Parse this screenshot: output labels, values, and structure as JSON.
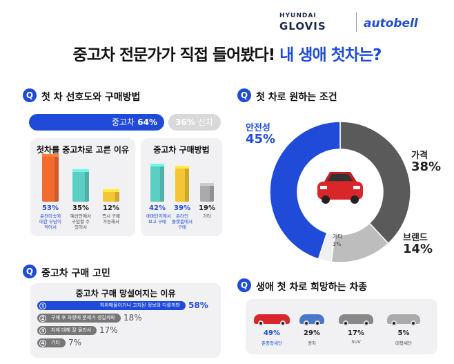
{
  "header": {
    "brand_top": "HYUNDAI",
    "brand_main": "GLOVIS",
    "brand_partner": "autobell",
    "title_main": "중고차 전문가가 직접 들어봤다! ",
    "title_highlight": "내 생애 첫차는?"
  },
  "colors": {
    "accent": "#1f4bd8",
    "dark_gray": "#555555",
    "light_gray": "#bdbdbd",
    "orange": "#f26a2e",
    "teal": "#5ccfc4",
    "yellow": "#f4c534"
  },
  "sections": {
    "q_icon": "Q",
    "s1": "첫 차 선호도와 구매방법",
    "s2": "첫 차로 원하는 조건",
    "s3": "중고차 구매 고민",
    "s4": "생애 첫 차로 희망하는 차종"
  },
  "preference": {
    "used_label": "중고차",
    "used_pct": "64%",
    "new_label": "신차",
    "new_pct": "36%",
    "used_value": 64
  },
  "chart_data": [
    {
      "type": "bar",
      "title": "첫차를 중고차로 고른 이유",
      "categories": [
        "운전미숙에 대한 부담이 적어서",
        "예산안에서 구입할 수 있어서",
        "즉시 구매 가능해서"
      ],
      "values": [
        53,
        35,
        12
      ],
      "labels": [
        "53%",
        "35%",
        "12%"
      ]
    },
    {
      "type": "bar",
      "title": "중고차 구매방법",
      "categories": [
        "매매단지에서 보고 구매",
        "온라인 플랫폼에서 구매",
        "기타"
      ],
      "values": [
        42,
        39,
        19
      ],
      "labels": [
        "42%",
        "39%",
        "19%"
      ]
    },
    {
      "type": "pie",
      "title": "",
      "categories": [
        "가격",
        "브랜드",
        "기타",
        "안전성"
      ],
      "values": [
        38,
        14,
        3,
        45
      ],
      "labels": [
        "38%",
        "14%",
        "3%",
        "45%"
      ],
      "colors": [
        "#5a5a5a",
        "#bdbdbd",
        "#f0f0f0",
        "#1f4bd8"
      ]
    },
    {
      "type": "bar",
      "orientation": "horizontal",
      "title": "중고차 구매 망설여지는 이유",
      "categories": [
        "허위매물이거나 고지된 정보와 다를까봐",
        "구매 후 차량에 문제가 생길까봐",
        "차에 대해 잘 몰라서",
        "기타"
      ],
      "values": [
        58,
        18,
        17,
        7
      ],
      "labels": [
        "58%",
        "18%",
        "17%",
        "7%"
      ],
      "ranks": [
        "1",
        "2",
        "3",
        "4"
      ]
    },
    {
      "type": "bar",
      "title": "",
      "categories": [
        "준중형세단",
        "경차",
        "SUV",
        "대형세단"
      ],
      "values": [
        49,
        29,
        17,
        5
      ],
      "labels": [
        "49%",
        "29%",
        "17%",
        "5%"
      ]
    }
  ]
}
